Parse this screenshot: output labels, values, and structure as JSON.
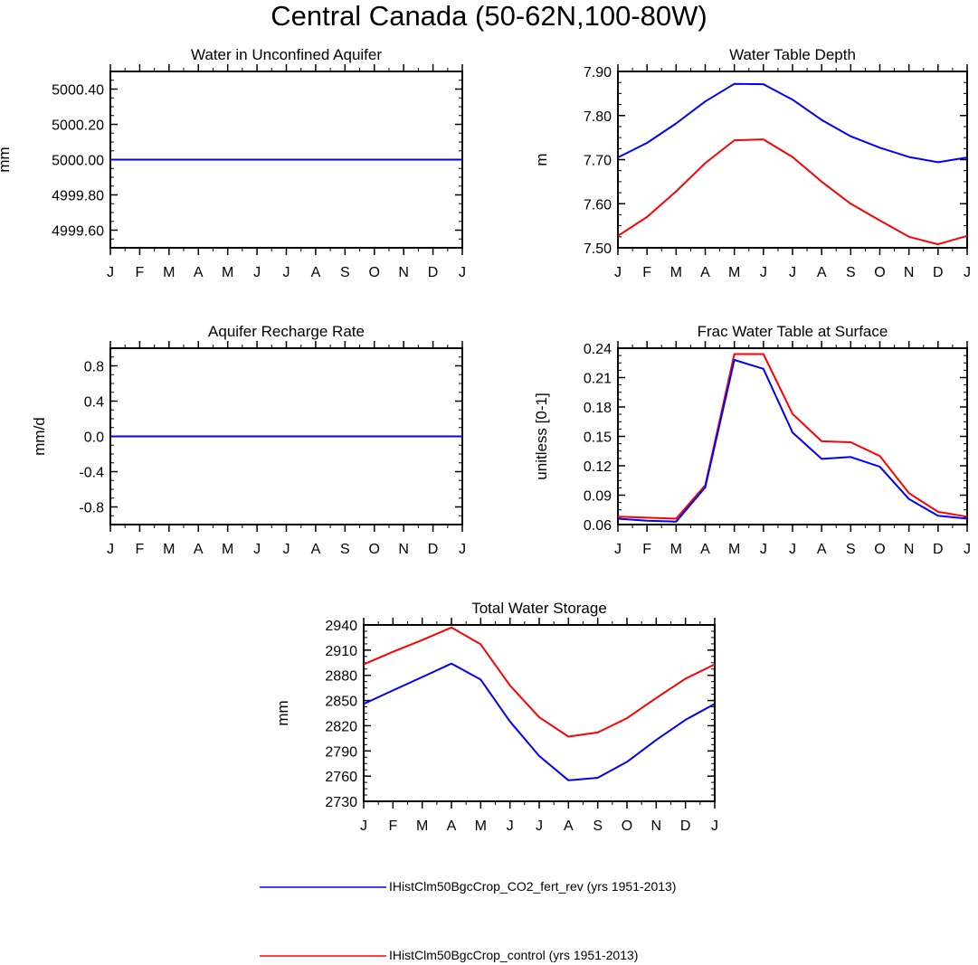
{
  "title": "Central Canada (50-62N,100-80W)",
  "months": [
    "J",
    "F",
    "M",
    "A",
    "M",
    "J",
    "J",
    "A",
    "S",
    "O",
    "N",
    "D",
    "J"
  ],
  "colors": {
    "fert_rev": "#0000ff",
    "control": "#ff0000"
  },
  "legend": [
    {
      "label": "IHistClm50BgcCrop_CO2_fert_rev (yrs 1951-2013)",
      "color": "#0000ff"
    },
    {
      "label": "IHistClm50BgcCrop_control (yrs 1951-2013)",
      "color": "#ff0000"
    }
  ],
  "chart_data": [
    {
      "type": "line",
      "title": "Water in Unconfined Aquifer",
      "ylabel": "mm",
      "xlabel": "",
      "x": [
        "J",
        "F",
        "M",
        "A",
        "M",
        "J",
        "J",
        "A",
        "S",
        "O",
        "N",
        "D",
        "J"
      ],
      "ylim": [
        4999.5,
        5000.5
      ],
      "yticks": [
        4999.6,
        4999.8,
        5000.0,
        5000.2,
        5000.4
      ],
      "ytick_labels": [
        "4999.60",
        "4999.80",
        "5000.00",
        "5000.20",
        "5000.40"
      ],
      "series": [
        {
          "name": "IHistClm50BgcCrop_CO2_fert_rev (yrs 1951-2013)",
          "color": "#0000ff",
          "values": [
            5000,
            5000,
            5000,
            5000,
            5000,
            5000,
            5000,
            5000,
            5000,
            5000,
            5000,
            5000,
            5000
          ]
        },
        {
          "name": "IHistClm50BgcCrop_control (yrs 1951-2013)",
          "color": "#ff0000",
          "values": [
            5000,
            5000,
            5000,
            5000,
            5000,
            5000,
            5000,
            5000,
            5000,
            5000,
            5000,
            5000,
            5000
          ]
        }
      ]
    },
    {
      "type": "line",
      "title": "Water Table Depth",
      "ylabel": "m",
      "xlabel": "",
      "x": [
        "J",
        "F",
        "M",
        "A",
        "M",
        "J",
        "J",
        "A",
        "S",
        "O",
        "N",
        "D",
        "J"
      ],
      "ylim": [
        7.5,
        7.9
      ],
      "yticks": [
        7.5,
        7.6,
        7.7,
        7.8,
        7.9
      ],
      "ytick_labels": [
        "7.50",
        "7.60",
        "7.70",
        "7.80",
        "7.90"
      ],
      "series": [
        {
          "name": "IHistClm50BgcCrop_CO2_fert_rev (yrs 1951-2013)",
          "color": "#0000ff",
          "values": [
            7.705,
            7.738,
            7.782,
            7.832,
            7.872,
            7.871,
            7.836,
            7.79,
            7.753,
            7.727,
            7.706,
            7.694,
            7.705
          ]
        },
        {
          "name": "IHistClm50BgcCrop_control (yrs 1951-2013)",
          "color": "#ff0000",
          "values": [
            7.527,
            7.57,
            7.628,
            7.692,
            7.744,
            7.746,
            7.706,
            7.65,
            7.6,
            7.562,
            7.525,
            7.508,
            7.527
          ]
        }
      ]
    },
    {
      "type": "line",
      "title": "Aquifer Recharge Rate",
      "ylabel": "mm/d",
      "xlabel": "",
      "x": [
        "J",
        "F",
        "M",
        "A",
        "M",
        "J",
        "J",
        "A",
        "S",
        "O",
        "N",
        "D",
        "J"
      ],
      "ylim": [
        -1.0,
        1.0
      ],
      "yticks": [
        -0.8,
        -0.4,
        0.0,
        0.4,
        0.8
      ],
      "ytick_labels": [
        "-0.8",
        "-0.4",
        "0.0",
        "0.4",
        "0.8"
      ],
      "series": [
        {
          "name": "IHistClm50BgcCrop_CO2_fert_rev (yrs 1951-2013)",
          "color": "#0000ff",
          "values": [
            0,
            0,
            0,
            0,
            0,
            0,
            0,
            0,
            0,
            0,
            0,
            0,
            0
          ]
        },
        {
          "name": "IHistClm50BgcCrop_control (yrs 1951-2013)",
          "color": "#ff0000",
          "values": [
            0,
            0,
            0,
            0,
            0,
            0,
            0,
            0,
            0,
            0,
            0,
            0,
            0
          ]
        }
      ]
    },
    {
      "type": "line",
      "title": "Frac Water Table at Surface",
      "ylabel": "unitless [0-1]",
      "xlabel": "",
      "x": [
        "J",
        "F",
        "M",
        "A",
        "M",
        "J",
        "J",
        "A",
        "S",
        "O",
        "N",
        "D",
        "J"
      ],
      "ylim": [
        0.06,
        0.24
      ],
      "yticks": [
        0.06,
        0.09,
        0.12,
        0.15,
        0.18,
        0.21,
        0.24
      ],
      "ytick_labels": [
        "0.06",
        "0.09",
        "0.12",
        "0.15",
        "0.18",
        "0.21",
        "0.24"
      ],
      "series": [
        {
          "name": "IHistClm50BgcCrop_CO2_fert_rev (yrs 1951-2013)",
          "color": "#0000ff",
          "values": [
            0.066,
            0.064,
            0.063,
            0.098,
            0.228,
            0.219,
            0.154,
            0.127,
            0.129,
            0.119,
            0.086,
            0.069,
            0.066
          ]
        },
        {
          "name": "IHistClm50BgcCrop_control (yrs 1951-2013)",
          "color": "#ff0000",
          "values": [
            0.068,
            0.067,
            0.066,
            0.1,
            0.234,
            0.234,
            0.173,
            0.145,
            0.144,
            0.13,
            0.092,
            0.073,
            0.068
          ]
        }
      ]
    },
    {
      "type": "line",
      "title": "Total Water Storage",
      "ylabel": "mm",
      "xlabel": "",
      "x": [
        "J",
        "F",
        "M",
        "A",
        "M",
        "J",
        "J",
        "A",
        "S",
        "O",
        "N",
        "D",
        "J"
      ],
      "ylim": [
        2730,
        2940
      ],
      "yticks": [
        2730,
        2760,
        2790,
        2820,
        2850,
        2880,
        2910,
        2940
      ],
      "ytick_labels": [
        "2730",
        "2760",
        "2790",
        "2820",
        "2850",
        "2880",
        "2910",
        "2940"
      ],
      "series": [
        {
          "name": "IHistClm50BgcCrop_CO2_fert_rev (yrs 1951-2013)",
          "color": "#0000ff",
          "values": [
            2846,
            2862,
            2878,
            2894,
            2875,
            2825,
            2784,
            2755,
            2758,
            2777,
            2803,
            2827,
            2846
          ]
        },
        {
          "name": "IHistClm50BgcCrop_control (yrs 1951-2013)",
          "color": "#ff0000",
          "values": [
            2893,
            2908,
            2922,
            2937,
            2917,
            2868,
            2830,
            2807,
            2812,
            2829,
            2853,
            2876,
            2893
          ]
        }
      ]
    }
  ]
}
